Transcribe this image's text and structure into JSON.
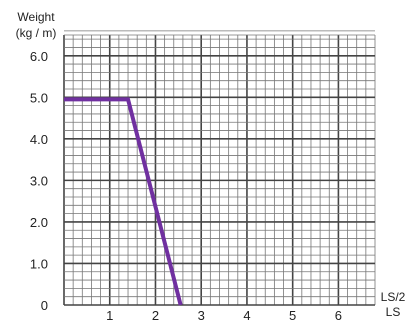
{
  "chart_data": {
    "type": "line",
    "ylabel_line1": "Weight",
    "ylabel_line2": "(kg / m)",
    "xlabel_line1": "LS/2",
    "xlabel_line2": "LS",
    "x_ticks": [
      "1",
      "2",
      "3",
      "4",
      "5",
      "6"
    ],
    "y_ticks": [
      "0",
      "1.0",
      "2.0",
      "3.0",
      "4.0",
      "5.0",
      "6.0"
    ],
    "xlim": [
      0,
      6.8
    ],
    "ylim": [
      0,
      6.5
    ],
    "grid": true,
    "series": [
      {
        "color": "#7030a0",
        "x": [
          0,
          1.4,
          2.55
        ],
        "y": [
          4.95,
          4.95,
          0
        ]
      }
    ]
  }
}
